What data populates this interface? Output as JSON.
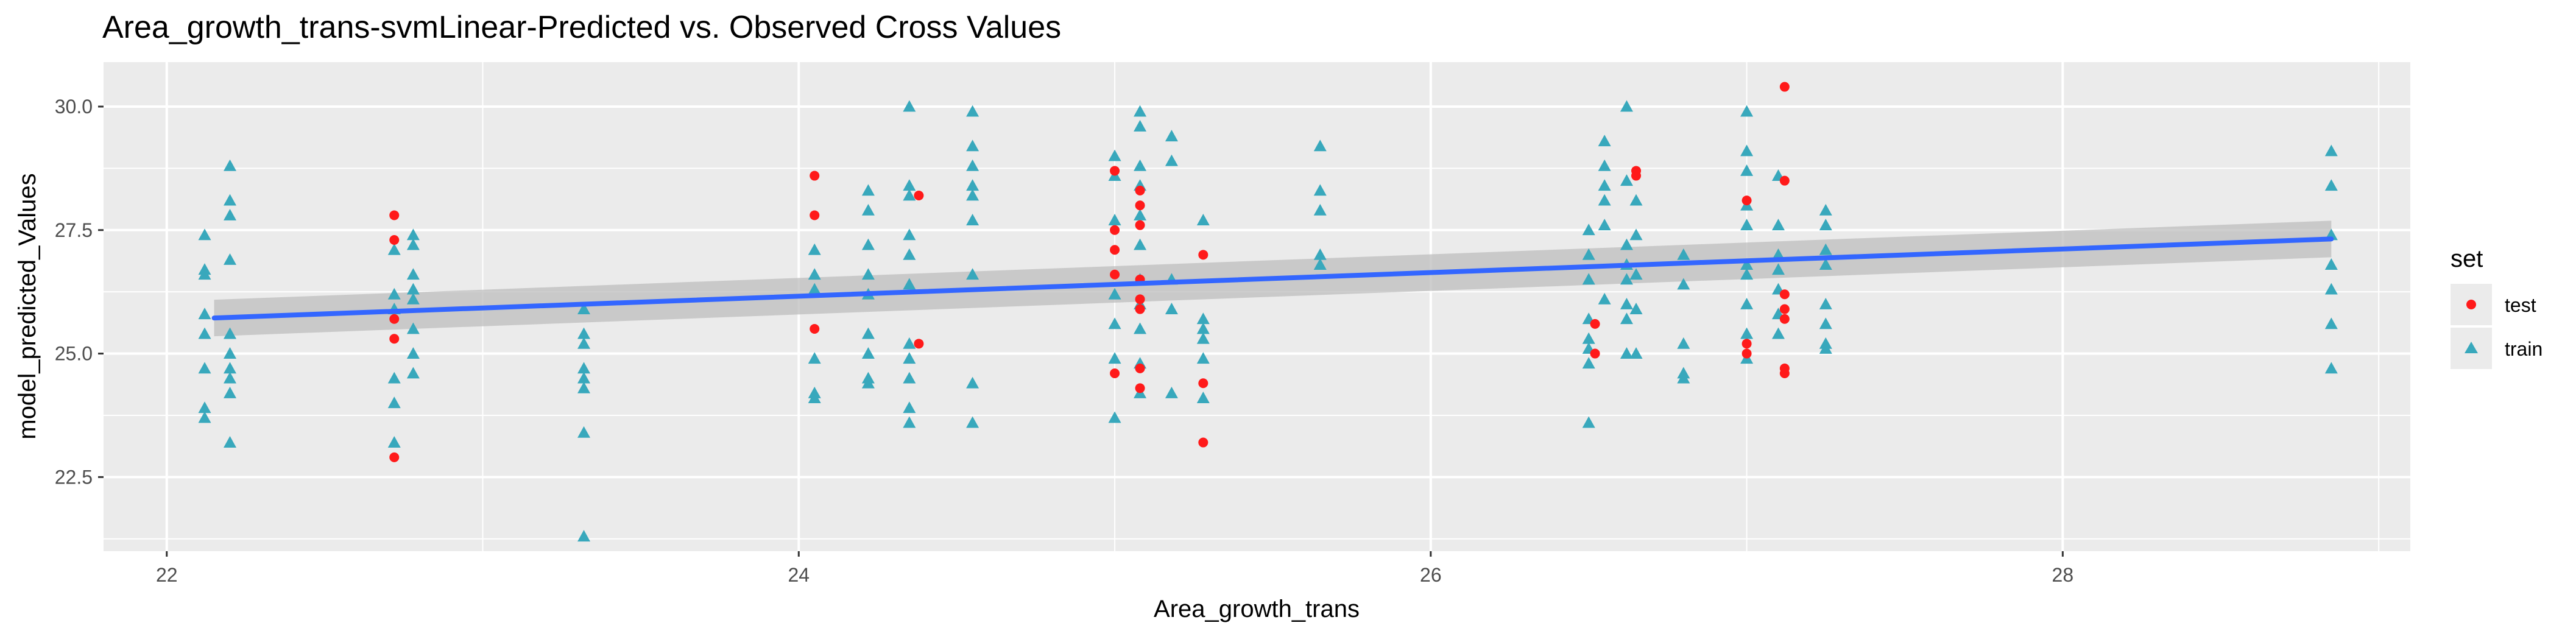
{
  "chart_data": {
    "type": "scatter",
    "title": "Area_growth_trans-svmLinear-Predicted vs. Observed Cross Values",
    "xlabel": "Area_growth_trans",
    "ylabel": "model_predicted_Values",
    "xlim": [
      21.8,
      29.1
    ],
    "ylim": [
      21.0,
      30.9
    ],
    "x_ticks": [
      22,
      24,
      26,
      28
    ],
    "y_ticks": [
      22.5,
      25.0,
      27.5,
      30.0
    ],
    "grid": true,
    "legend": {
      "title": "set",
      "position": "right",
      "entries": [
        "test",
        "train"
      ]
    },
    "colors": {
      "test": "#F8766D",
      "train": "#00BFC4",
      "test_point": "#ff1a1a",
      "train_point": "#38a8bc",
      "fit_line": "#3366FF",
      "ribbon": "#bdbdbd",
      "panel": "#ebebeb"
    },
    "fit": {
      "method": "lm",
      "x": [
        22.15,
        28.85
      ],
      "y": [
        25.72,
        27.32
      ],
      "se_lower": [
        25.35,
        26.95
      ],
      "se_upper": [
        26.09,
        27.69
      ]
    },
    "series": [
      {
        "name": "train",
        "shape": "triangle",
        "points": [
          [
            22.12,
            27.4
          ],
          [
            22.12,
            26.7
          ],
          [
            22.12,
            26.6
          ],
          [
            22.12,
            25.8
          ],
          [
            22.12,
            25.4
          ],
          [
            22.12,
            24.7
          ],
          [
            22.12,
            23.9
          ],
          [
            22.12,
            23.7
          ],
          [
            22.2,
            28.8
          ],
          [
            22.2,
            28.1
          ],
          [
            22.2,
            27.8
          ],
          [
            22.2,
            26.9
          ],
          [
            22.2,
            25.4
          ],
          [
            22.2,
            25.0
          ],
          [
            22.2,
            24.7
          ],
          [
            22.2,
            24.5
          ],
          [
            22.2,
            24.2
          ],
          [
            22.2,
            23.2
          ],
          [
            22.72,
            27.1
          ],
          [
            22.72,
            26.2
          ],
          [
            22.72,
            25.9
          ],
          [
            22.72,
            24.5
          ],
          [
            22.72,
            24.0
          ],
          [
            22.72,
            23.2
          ],
          [
            22.78,
            27.4
          ],
          [
            22.78,
            27.2
          ],
          [
            22.78,
            26.6
          ],
          [
            22.78,
            26.3
          ],
          [
            22.78,
            26.1
          ],
          [
            22.78,
            25.5
          ],
          [
            22.78,
            25.0
          ],
          [
            22.78,
            24.6
          ],
          [
            23.32,
            25.9
          ],
          [
            23.32,
            25.4
          ],
          [
            23.32,
            25.2
          ],
          [
            23.32,
            24.7
          ],
          [
            23.32,
            24.5
          ],
          [
            23.32,
            24.3
          ],
          [
            23.32,
            23.4
          ],
          [
            23.32,
            21.3
          ],
          [
            24.05,
            27.1
          ],
          [
            24.05,
            26.6
          ],
          [
            24.05,
            26.3
          ],
          [
            24.05,
            24.9
          ],
          [
            24.05,
            24.2
          ],
          [
            24.05,
            24.1
          ],
          [
            24.22,
            28.3
          ],
          [
            24.22,
            27.9
          ],
          [
            24.22,
            27.2
          ],
          [
            24.22,
            26.6
          ],
          [
            24.22,
            26.2
          ],
          [
            24.22,
            25.4
          ],
          [
            24.22,
            25.0
          ],
          [
            24.22,
            24.5
          ],
          [
            24.22,
            24.4
          ],
          [
            24.35,
            30.0
          ],
          [
            24.35,
            28.4
          ],
          [
            24.35,
            28.2
          ],
          [
            24.35,
            27.4
          ],
          [
            24.35,
            27.0
          ],
          [
            24.35,
            26.4
          ],
          [
            24.35,
            25.2
          ],
          [
            24.35,
            24.9
          ],
          [
            24.35,
            24.5
          ],
          [
            24.35,
            23.9
          ],
          [
            24.35,
            23.6
          ],
          [
            24.55,
            29.9
          ],
          [
            24.55,
            29.2
          ],
          [
            24.55,
            28.8
          ],
          [
            24.55,
            28.4
          ],
          [
            24.55,
            28.2
          ],
          [
            24.55,
            27.7
          ],
          [
            24.55,
            26.6
          ],
          [
            24.55,
            24.4
          ],
          [
            24.55,
            23.6
          ],
          [
            25.0,
            29.0
          ],
          [
            25.0,
            28.6
          ],
          [
            25.0,
            27.7
          ],
          [
            25.0,
            26.2
          ],
          [
            25.0,
            25.6
          ],
          [
            25.0,
            24.9
          ],
          [
            25.0,
            23.7
          ],
          [
            25.08,
            29.9
          ],
          [
            25.08,
            29.6
          ],
          [
            25.08,
            28.8
          ],
          [
            25.08,
            28.4
          ],
          [
            25.08,
            27.8
          ],
          [
            25.08,
            27.2
          ],
          [
            25.08,
            26.5
          ],
          [
            25.08,
            26.0
          ],
          [
            25.08,
            25.5
          ],
          [
            25.08,
            24.8
          ],
          [
            25.08,
            24.2
          ],
          [
            25.18,
            29.4
          ],
          [
            25.18,
            28.9
          ],
          [
            25.18,
            26.5
          ],
          [
            25.18,
            25.9
          ],
          [
            25.18,
            24.2
          ],
          [
            25.28,
            27.7
          ],
          [
            25.28,
            25.7
          ],
          [
            25.28,
            25.5
          ],
          [
            25.28,
            25.3
          ],
          [
            25.28,
            24.9
          ],
          [
            25.28,
            24.1
          ],
          [
            25.65,
            29.2
          ],
          [
            25.65,
            28.3
          ],
          [
            25.65,
            27.9
          ],
          [
            25.65,
            27.0
          ],
          [
            25.65,
            26.8
          ],
          [
            26.5,
            27.5
          ],
          [
            26.5,
            27.0
          ],
          [
            26.5,
            26.5
          ],
          [
            26.5,
            25.7
          ],
          [
            26.5,
            25.3
          ],
          [
            26.5,
            25.1
          ],
          [
            26.5,
            24.8
          ],
          [
            26.5,
            23.6
          ],
          [
            26.55,
            29.3
          ],
          [
            26.55,
            28.8
          ],
          [
            26.55,
            28.4
          ],
          [
            26.55,
            28.1
          ],
          [
            26.55,
            27.6
          ],
          [
            26.55,
            26.1
          ],
          [
            26.62,
            30.0
          ],
          [
            26.62,
            28.5
          ],
          [
            26.62,
            27.2
          ],
          [
            26.62,
            26.8
          ],
          [
            26.62,
            26.5
          ],
          [
            26.62,
            26.0
          ],
          [
            26.62,
            25.7
          ],
          [
            26.62,
            25.0
          ],
          [
            26.65,
            28.1
          ],
          [
            26.65,
            27.4
          ],
          [
            26.65,
            26.6
          ],
          [
            26.65,
            25.9
          ],
          [
            26.65,
            25.0
          ],
          [
            26.8,
            27.0
          ],
          [
            26.8,
            26.4
          ],
          [
            26.8,
            25.2
          ],
          [
            26.8,
            24.6
          ],
          [
            26.8,
            24.5
          ],
          [
            27.0,
            29.9
          ],
          [
            27.0,
            29.1
          ],
          [
            27.0,
            28.7
          ],
          [
            27.0,
            28.0
          ],
          [
            27.0,
            27.6
          ],
          [
            27.0,
            26.8
          ],
          [
            27.0,
            26.6
          ],
          [
            27.0,
            26.0
          ],
          [
            27.0,
            25.4
          ],
          [
            27.0,
            24.9
          ],
          [
            27.1,
            28.6
          ],
          [
            27.1,
            27.6
          ],
          [
            27.1,
            27.0
          ],
          [
            27.1,
            26.7
          ],
          [
            27.1,
            26.3
          ],
          [
            27.1,
            25.8
          ],
          [
            27.1,
            25.4
          ],
          [
            27.25,
            27.9
          ],
          [
            27.25,
            27.6
          ],
          [
            27.25,
            27.1
          ],
          [
            27.25,
            26.8
          ],
          [
            27.25,
            26.0
          ],
          [
            27.25,
            25.6
          ],
          [
            27.25,
            25.2
          ],
          [
            27.25,
            25.1
          ],
          [
            28.85,
            29.1
          ],
          [
            28.85,
            28.4
          ],
          [
            28.85,
            27.4
          ],
          [
            28.85,
            26.8
          ],
          [
            28.85,
            26.3
          ],
          [
            28.85,
            25.6
          ],
          [
            28.85,
            24.7
          ]
        ]
      },
      {
        "name": "test",
        "shape": "circle",
        "points": [
          [
            22.72,
            27.8
          ],
          [
            22.72,
            27.3
          ],
          [
            22.72,
            25.7
          ],
          [
            22.72,
            25.3
          ],
          [
            22.72,
            22.9
          ],
          [
            24.05,
            28.6
          ],
          [
            24.05,
            27.8
          ],
          [
            24.05,
            25.5
          ],
          [
            24.38,
            28.2
          ],
          [
            24.38,
            25.2
          ],
          [
            25.0,
            28.7
          ],
          [
            25.0,
            27.5
          ],
          [
            25.0,
            27.1
          ],
          [
            25.0,
            26.6
          ],
          [
            25.0,
            24.6
          ],
          [
            25.08,
            28.3
          ],
          [
            25.08,
            28.0
          ],
          [
            25.08,
            27.6
          ],
          [
            25.08,
            26.5
          ],
          [
            25.08,
            26.1
          ],
          [
            25.08,
            25.9
          ],
          [
            25.08,
            24.7
          ],
          [
            25.08,
            24.3
          ],
          [
            25.28,
            27.0
          ],
          [
            25.28,
            24.4
          ],
          [
            25.28,
            23.2
          ],
          [
            26.52,
            25.6
          ],
          [
            26.52,
            25.0
          ],
          [
            26.65,
            28.7
          ],
          [
            26.65,
            28.6
          ],
          [
            27.0,
            28.1
          ],
          [
            27.0,
            25.2
          ],
          [
            27.0,
            25.0
          ],
          [
            27.12,
            30.4
          ],
          [
            27.12,
            28.5
          ],
          [
            27.12,
            26.2
          ],
          [
            27.12,
            25.9
          ],
          [
            27.12,
            25.7
          ],
          [
            27.12,
            24.7
          ],
          [
            27.12,
            24.6
          ]
        ]
      }
    ]
  }
}
